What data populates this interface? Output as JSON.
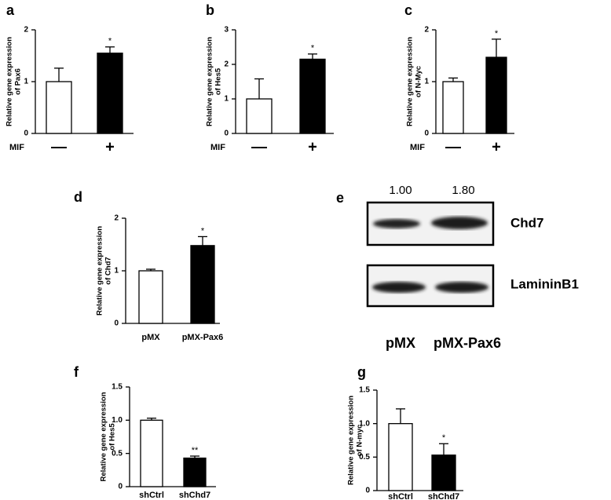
{
  "chart_data": [
    {
      "type": "bar",
      "panel": "a",
      "ylabel": [
        "Relative gene expression",
        "of Pax6"
      ],
      "xlabel": "MIF",
      "categories": [
        "—",
        "+"
      ],
      "values": [
        1.0,
        1.55
      ],
      "errors": [
        0.26,
        0.12
      ],
      "colors": [
        "#ffffff",
        "#000000"
      ],
      "ylim": [
        0,
        2
      ],
      "yticks": [
        0,
        1,
        2
      ],
      "significance": "*"
    },
    {
      "type": "bar",
      "panel": "b",
      "ylabel": [
        "Relative gene expression",
        "of Hes5"
      ],
      "xlabel": "MIF",
      "categories": [
        "—",
        "+"
      ],
      "values": [
        1.0,
        2.15
      ],
      "errors": [
        0.58,
        0.15
      ],
      "colors": [
        "#ffffff",
        "#000000"
      ],
      "ylim": [
        0,
        3
      ],
      "yticks": [
        0,
        1,
        2,
        3
      ],
      "significance": "*"
    },
    {
      "type": "bar",
      "panel": "c",
      "ylabel": [
        "Relative gene expression",
        "of N-Myc"
      ],
      "xlabel": "MIF",
      "categories": [
        "—",
        "+"
      ],
      "values": [
        1.0,
        1.47
      ],
      "errors": [
        0.07,
        0.35
      ],
      "colors": [
        "#ffffff",
        "#000000"
      ],
      "ylim": [
        0,
        2
      ],
      "yticks": [
        0,
        1,
        2
      ],
      "significance": "*"
    },
    {
      "type": "bar",
      "panel": "d",
      "ylabel": [
        "Relative gene expression",
        "of Chd7"
      ],
      "categories": [
        "pMX",
        "pMX-Pax6"
      ],
      "values": [
        1.0,
        1.48
      ],
      "errors": [
        0.03,
        0.17
      ],
      "colors": [
        "#ffffff",
        "#000000"
      ],
      "ylim": [
        0,
        2
      ],
      "yticks": [
        0,
        1,
        2
      ],
      "significance": "*"
    },
    {
      "type": "bar",
      "panel": "f",
      "ylabel": [
        "Relative gene expression",
        "of Hes5"
      ],
      "categories": [
        "shCtrl",
        "shChd7"
      ],
      "values": [
        1.0,
        0.43
      ],
      "errors": [
        0.03,
        0.03
      ],
      "colors": [
        "#ffffff",
        "#000000"
      ],
      "ylim": [
        0,
        1.5
      ],
      "yticks": [
        0,
        0.5,
        {
          "value": 1,
          "label": "1.0"
        },
        1.5
      ],
      "significance": "**"
    },
    {
      "type": "bar",
      "panel": "g",
      "ylabel": [
        "Relative gene expression",
        "of N-myc"
      ],
      "categories": [
        "shCtrl",
        "shChd7"
      ],
      "values": [
        1.0,
        0.53
      ],
      "errors": [
        0.22,
        0.17
      ],
      "colors": [
        "#ffffff",
        "#000000"
      ],
      "ylim": [
        0,
        1.5
      ],
      "yticks": [
        0,
        0.5,
        {
          "value": 1,
          "label": "1.0"
        },
        1.5
      ],
      "significance": "*"
    }
  ],
  "blot": {
    "panel": "e",
    "quantification": [
      "1.00",
      "1.80"
    ],
    "rows": [
      "Chd7",
      "LamininB1"
    ],
    "lanes": [
      "pMX",
      "pMX-Pax6"
    ]
  }
}
